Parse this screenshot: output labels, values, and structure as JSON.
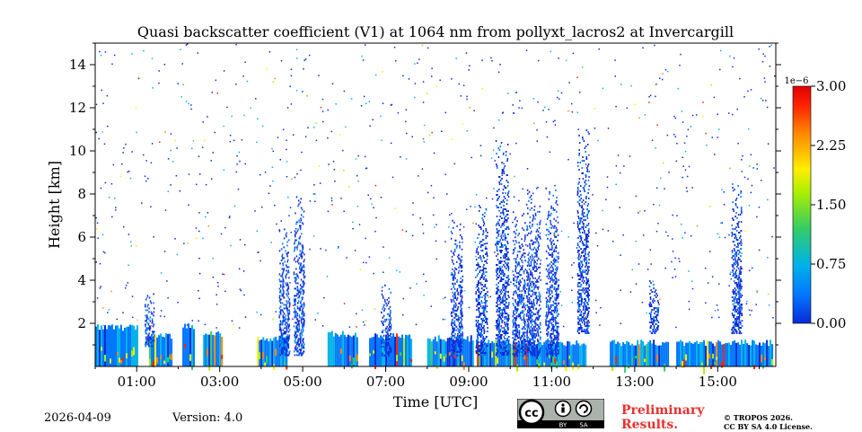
{
  "chart_data": {
    "type": "heatmap",
    "title": "Quasi backscatter coefficient (V1) at 1064 nm from pollyxt_lacros2 at Invercargill",
    "xlabel": "Time [UTC]",
    "ylabel": "Height [km]",
    "xlim": [
      0.0,
      16.4
    ],
    "ylim": [
      0.0,
      15.0
    ],
    "x_ticks": [
      {
        "value": 1,
        "label": "01:00"
      },
      {
        "value": 3,
        "label": "03:00"
      },
      {
        "value": 5,
        "label": "05:00"
      },
      {
        "value": 7,
        "label": "07:00"
      },
      {
        "value": 9,
        "label": "09:00"
      },
      {
        "value": 11,
        "label": "11:00"
      },
      {
        "value": 13,
        "label": "13:00"
      },
      {
        "value": 15,
        "label": "15:00"
      }
    ],
    "y_ticks": [
      {
        "value": 2,
        "label": "2"
      },
      {
        "value": 4,
        "label": "4"
      },
      {
        "value": 6,
        "label": "6"
      },
      {
        "value": 8,
        "label": "8"
      },
      {
        "value": 10,
        "label": "10"
      },
      {
        "value": 12,
        "label": "12"
      },
      {
        "value": 14,
        "label": "14"
      }
    ],
    "colorbar": {
      "min": 0.0,
      "max": 3.0,
      "exponent_label": "1e−6",
      "ticks": [
        "0.00",
        "0.75",
        "1.50",
        "2.25",
        "3.00"
      ],
      "tick_values": [
        0,
        0.75,
        1.5,
        2.25,
        3.0
      ],
      "colors": [
        "#0a2ad6",
        "#0077ff",
        "#00b3e6",
        "#33cc66",
        "#aaee00",
        "#ffee00",
        "#ff8800",
        "#ff2200",
        "#dd0000"
      ]
    },
    "boundary_layer_segments": [
      {
        "start": 0.0,
        "end": 1.0,
        "top": 1.8
      },
      {
        "start": 1.3,
        "end": 1.85,
        "top": 1.4
      },
      {
        "start": 2.1,
        "end": 2.4,
        "top": 1.85
      },
      {
        "start": 2.6,
        "end": 3.05,
        "top": 1.5
      },
      {
        "start": 3.9,
        "end": 4.6,
        "top": 1.3
      },
      {
        "start": 5.6,
        "end": 6.3,
        "top": 1.5
      },
      {
        "start": 6.6,
        "end": 7.6,
        "top": 1.4
      },
      {
        "start": 8.0,
        "end": 9.1,
        "top": 1.3
      },
      {
        "start": 9.2,
        "end": 11.8,
        "top": 1.1
      },
      {
        "start": 12.4,
        "end": 13.8,
        "top": 1.1
      },
      {
        "start": 14.0,
        "end": 16.3,
        "top": 1.1
      }
    ],
    "aerosol_columns": [
      {
        "time": 1.3,
        "bottom": 0.9,
        "top": 3.4,
        "intensity": 0.3
      },
      {
        "time": 4.55,
        "bottom": 0.5,
        "top": 6.4,
        "intensity": 0.4
      },
      {
        "time": 4.9,
        "bottom": 0.5,
        "top": 7.9,
        "intensity": 0.4
      },
      {
        "time": 7.0,
        "bottom": 0.5,
        "top": 3.8,
        "intensity": 0.35
      },
      {
        "time": 8.7,
        "bottom": 0.5,
        "top": 6.8,
        "intensity": 0.5
      },
      {
        "time": 9.3,
        "bottom": 0.5,
        "top": 7.5,
        "intensity": 0.5
      },
      {
        "time": 9.8,
        "bottom": 0.5,
        "top": 10.5,
        "intensity": 0.6
      },
      {
        "time": 10.2,
        "bottom": 0.5,
        "top": 7.2,
        "intensity": 0.6
      },
      {
        "time": 10.55,
        "bottom": 0.5,
        "top": 8.3,
        "intensity": 0.7
      },
      {
        "time": 11.0,
        "bottom": 0.5,
        "top": 8.3,
        "intensity": 0.6
      },
      {
        "time": 11.75,
        "bottom": 1.5,
        "top": 11.0,
        "intensity": 0.5
      },
      {
        "time": 13.45,
        "bottom": 1.5,
        "top": 4.0,
        "intensity": 0.3
      },
      {
        "time": 15.45,
        "bottom": 1.5,
        "top": 8.5,
        "intensity": 0.4
      }
    ]
  },
  "footer": {
    "date": "2026-04-09",
    "version": "Version: 4.0",
    "preliminary_line1": "Preliminary",
    "preliminary_line2": "Results.",
    "copyright_line1": "© TROPOS 2026.",
    "copyright_line2": "CC BY SA 4.0 License.",
    "badge_by": "BY",
    "badge_sa": "SA"
  }
}
